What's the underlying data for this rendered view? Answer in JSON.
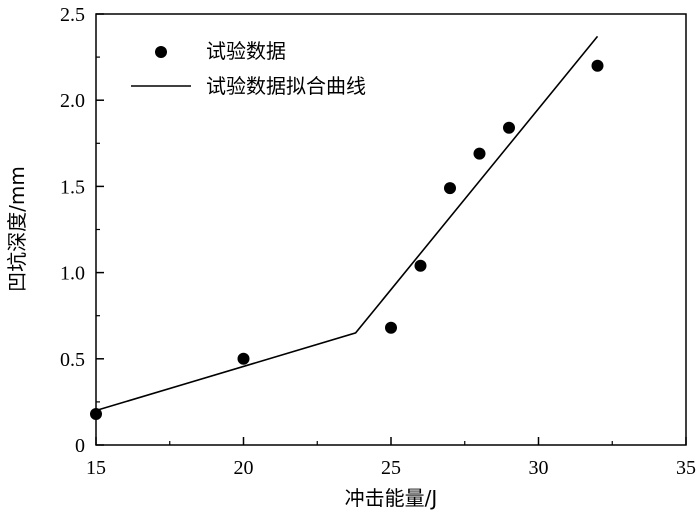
{
  "chart_data": {
    "type": "scatter",
    "xlabel": "冲击能量/J",
    "ylabel": "凹坑深度/mm",
    "xlim": [
      15,
      35
    ],
    "ylim": [
      0,
      2.5
    ],
    "x_ticks": [
      "15",
      "20",
      "25",
      "30",
      "35"
    ],
    "y_ticks": [
      "0",
      "0.5",
      "1.0",
      "1.5",
      "2.0",
      "2.5"
    ],
    "grid": false,
    "legend_position": "top-left",
    "series": [
      {
        "name": "试验数据",
        "kind": "scatter",
        "x": [
          15,
          20,
          25,
          26,
          27,
          28,
          29,
          32
        ],
        "y": [
          0.18,
          0.5,
          0.68,
          1.04,
          1.49,
          1.69,
          1.84,
          2.2
        ]
      },
      {
        "name": "试验数据拟合曲线",
        "kind": "line",
        "x": [
          15,
          23.8,
          32
        ],
        "y": [
          0.2,
          0.65,
          2.37
        ]
      }
    ]
  }
}
